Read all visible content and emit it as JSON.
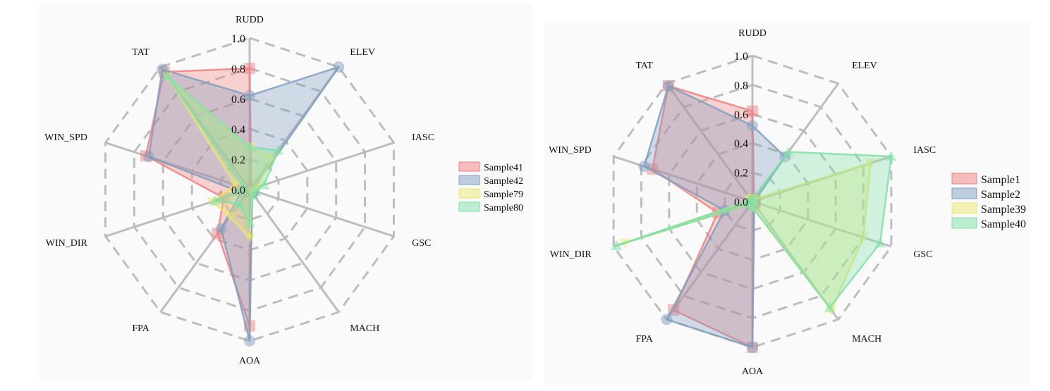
{
  "chart_data": [
    {
      "type": "radar",
      "axes": [
        "RUDD",
        "ELEV",
        "IASC",
        "GSC",
        "MACH",
        "AOA",
        "FPA",
        "WIN_DIR",
        "WIN_SPD",
        "TAT"
      ],
      "radial_ticks": [
        "0.0",
        "0.2",
        "0.4",
        "0.6",
        "0.8",
        "1.0"
      ],
      "rlim": [
        0,
        1
      ],
      "grid": true,
      "legend_position": "right",
      "series": [
        {
          "name": "Sample41",
          "color": "#f08080",
          "values": [
            0.8,
            0.02,
            0.02,
            0.02,
            0.02,
            0.9,
            0.36,
            0.18,
            0.72,
            0.96
          ]
        },
        {
          "name": "Sample42",
          "color": "#7f9fc0",
          "values": [
            0.62,
            1.0,
            0.03,
            0.03,
            0.03,
            1.0,
            0.32,
            0.06,
            0.7,
            0.98
          ]
        },
        {
          "name": "Sample79",
          "color": "#e8e870",
          "values": [
            0.28,
            0.26,
            0.05,
            0.03,
            0.03,
            0.32,
            0.22,
            0.26,
            0.1,
            0.92
          ]
        },
        {
          "name": "Sample80",
          "color": "#80e0a8",
          "values": [
            0.28,
            0.32,
            0.1,
            0.04,
            0.04,
            0.22,
            0.12,
            0.24,
            0.04,
            0.93
          ]
        }
      ]
    },
    {
      "type": "radar",
      "axes": [
        "RUDD",
        "ELEV",
        "IASC",
        "GSC",
        "MACH",
        "AOA",
        "FPA",
        "WIN_DIR",
        "WIN_SPD",
        "TAT"
      ],
      "radial_ticks": [
        "0.0",
        "0.2",
        "0.4",
        "0.6",
        "0.8",
        "1.0"
      ],
      "rlim": [
        0,
        1
      ],
      "grid": true,
      "legend_position": "right",
      "series": [
        {
          "name": "Sample1",
          "color": "#f08080",
          "values": [
            0.62,
            0.02,
            0.02,
            0.02,
            0.02,
            1.0,
            0.92,
            0.25,
            0.72,
            0.98
          ]
        },
        {
          "name": "Sample2",
          "color": "#7f9fc0",
          "values": [
            0.52,
            0.38,
            0.02,
            0.02,
            0.02,
            1.0,
            1.0,
            0.2,
            0.78,
            0.98
          ]
        },
        {
          "name": "Sample39",
          "color": "#e8e870",
          "values": [
            0.02,
            0.02,
            0.85,
            0.8,
            0.92,
            0.04,
            0.02,
            0.92,
            0.02,
            0.02
          ]
        },
        {
          "name": "Sample40",
          "color": "#80e0a8",
          "values": [
            0.02,
            0.42,
            1.0,
            0.92,
            0.9,
            0.04,
            0.02,
            0.98,
            0.02,
            0.02
          ]
        }
      ]
    }
  ]
}
